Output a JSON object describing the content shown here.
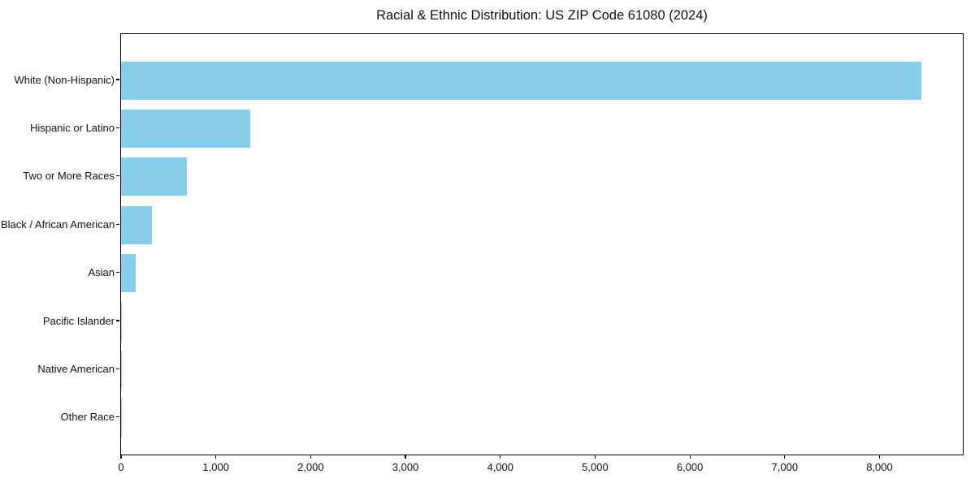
{
  "chart_data": {
    "type": "bar",
    "orientation": "horizontal",
    "title": "Racial & Ethnic Distribution: US ZIP Code 61080 (2024)",
    "categories": [
      "White (Non-Hispanic)",
      "Hispanic or Latino",
      "Two or More Races",
      "Black / African American",
      "Asian",
      "Pacific Islander",
      "Native American",
      "Other Race"
    ],
    "values": [
      8445,
      1360,
      695,
      325,
      155,
      12,
      6,
      2
    ],
    "bar_color": "#87CEEB",
    "xlabel": "",
    "ylabel": "",
    "xlim": [
      0,
      8870
    ],
    "xticks": [
      0,
      1000,
      2000,
      3000,
      4000,
      5000,
      6000,
      7000,
      8000
    ],
    "xtick_labels": [
      "0",
      "1,000",
      "2,000",
      "3,000",
      "4,000",
      "5,000",
      "6,000",
      "7,000",
      "8,000"
    ],
    "grid": false,
    "legend": null,
    "frame": "full-box",
    "background_color": "#ffffff",
    "text_color": "#111111"
  }
}
